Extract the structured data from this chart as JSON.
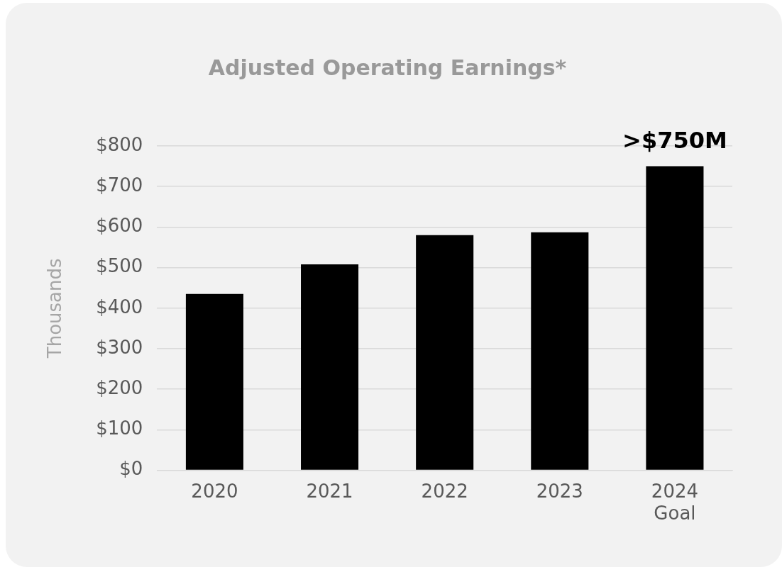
{
  "chart_data": {
    "type": "bar",
    "title": "Adjusted Operating Earnings*",
    "ylabel": "Thousands",
    "categories": [
      "2020",
      "2021",
      "2022",
      "2023",
      "2024\nGoal"
    ],
    "values": [
      435,
      508,
      580,
      587,
      750
    ],
    "color": "#000000",
    "ylim": [
      0,
      800
    ],
    "yticks": [
      {
        "value": 0,
        "label": "$0"
      },
      {
        "value": 100,
        "label": "$100"
      },
      {
        "value": 200,
        "label": "$200"
      },
      {
        "value": 300,
        "label": "$300"
      },
      {
        "value": 400,
        "label": "$400"
      },
      {
        "value": 500,
        "label": "$500"
      },
      {
        "value": 600,
        "label": "$600"
      },
      {
        "value": 700,
        "label": "$700"
      },
      {
        "value": 800,
        "label": "$800"
      }
    ],
    "grid": "y",
    "annotations": [
      {
        "text": ">$750M",
        "x": "2024\nGoal",
        "y": 750
      }
    ]
  }
}
